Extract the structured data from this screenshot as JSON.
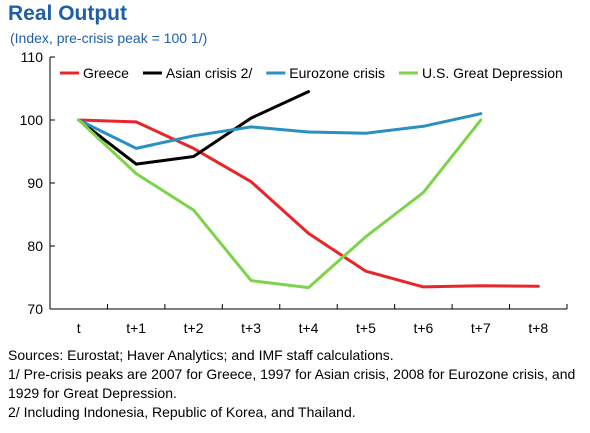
{
  "header": {
    "title": "Real Output",
    "subtitle": "(Index, pre-crisis peak = 100 1/)"
  },
  "chart_data": {
    "type": "line",
    "categories": [
      "t",
      "t+1",
      "t+2",
      "t+3",
      "t+4",
      "t+5",
      "t+6",
      "t+7",
      "t+8"
    ],
    "ylim": [
      70,
      110
    ],
    "yticks": [
      70,
      80,
      90,
      100,
      110
    ],
    "grid": false,
    "legend_position": "top",
    "series": [
      {
        "name": "Greece",
        "color": "#e8262a",
        "values": [
          100,
          99.7,
          95.5,
          90.2,
          82,
          76,
          73.5,
          73.7,
          73.6
        ]
      },
      {
        "name": "Asian crisis 2/",
        "color": "#000000",
        "values": [
          100,
          93,
          94.2,
          100.3,
          104.5,
          null,
          null,
          null,
          null
        ]
      },
      {
        "name": "Eurozone crisis",
        "color": "#2a8fc1",
        "values": [
          100,
          95.5,
          97.5,
          98.9,
          98.1,
          97.9,
          99,
          101,
          null
        ]
      },
      {
        "name": "U.S. Great Depression",
        "color": "#7ed34a",
        "values": [
          100,
          91.5,
          85.7,
          74.5,
          73.4,
          81.5,
          88.5,
          100,
          null
        ]
      }
    ]
  },
  "notes": {
    "sources": "Sources: Eurostat; Haver Analytics; and IMF staff calculations.",
    "note1": "1/ Pre-crisis peaks are 2007 for Greece, 1997 for Asian crisis, 2008 for Eurozone crisis, and 1929 for Great Depression.",
    "note2": "2/ Including Indonesia, Republic of Korea, and Thailand."
  }
}
